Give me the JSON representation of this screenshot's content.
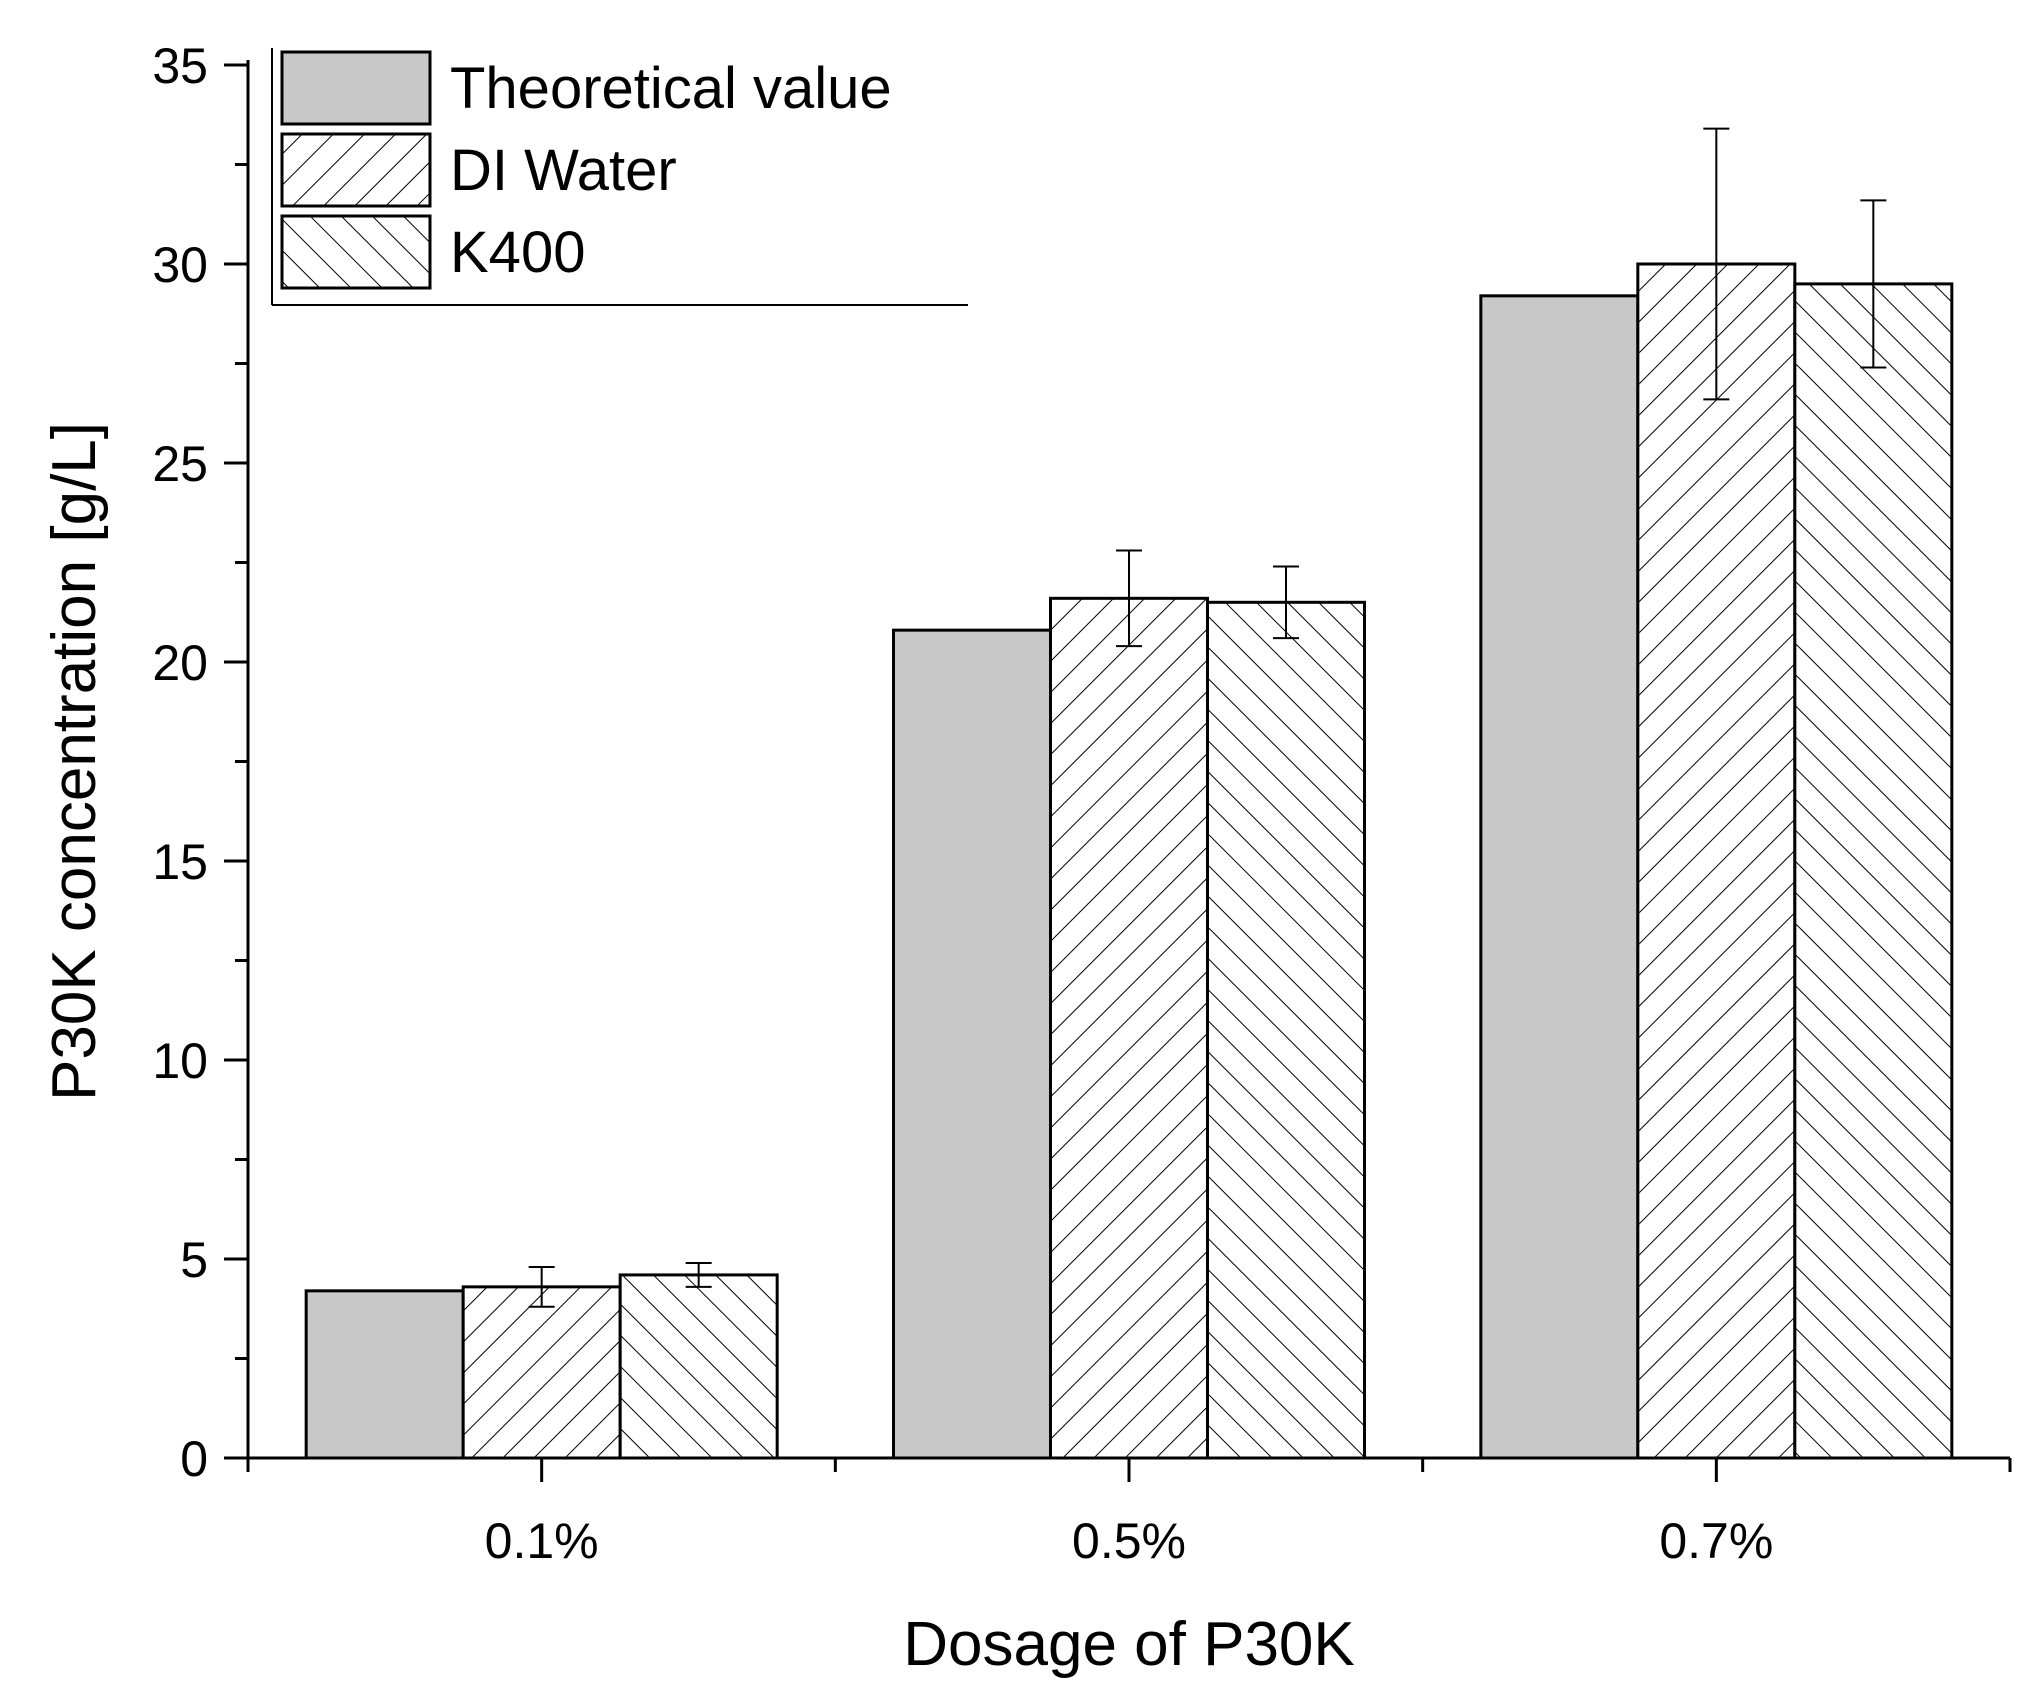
{
  "chart_data": {
    "type": "bar",
    "xlabel": "Dosage of P30K",
    "ylabel": "P30K concentration [g/L]",
    "categories": [
      "0.1%",
      "0.5%",
      "0.7%"
    ],
    "ylim": [
      0,
      35
    ],
    "yticks": [
      0,
      5,
      10,
      15,
      20,
      25,
      30,
      35
    ],
    "grid": false,
    "legend_position": "top-left",
    "series": [
      {
        "name": "Theoretical value",
        "values": [
          4.2,
          20.8,
          29.2
        ],
        "errors": [
          null,
          null,
          null
        ],
        "fill": "#c8c8c8",
        "pattern": "solid"
      },
      {
        "name": "DI Water",
        "values": [
          4.3,
          21.6,
          30.0
        ],
        "errors": [
          0.5,
          1.2,
          3.4
        ],
        "fill": "#ffffff",
        "pattern": "forward-hatch"
      },
      {
        "name": "K400",
        "values": [
          4.6,
          21.5,
          29.5
        ],
        "errors": [
          0.3,
          0.9,
          2.1
        ],
        "fill": "#ffffff",
        "pattern": "back-hatch"
      }
    ]
  }
}
